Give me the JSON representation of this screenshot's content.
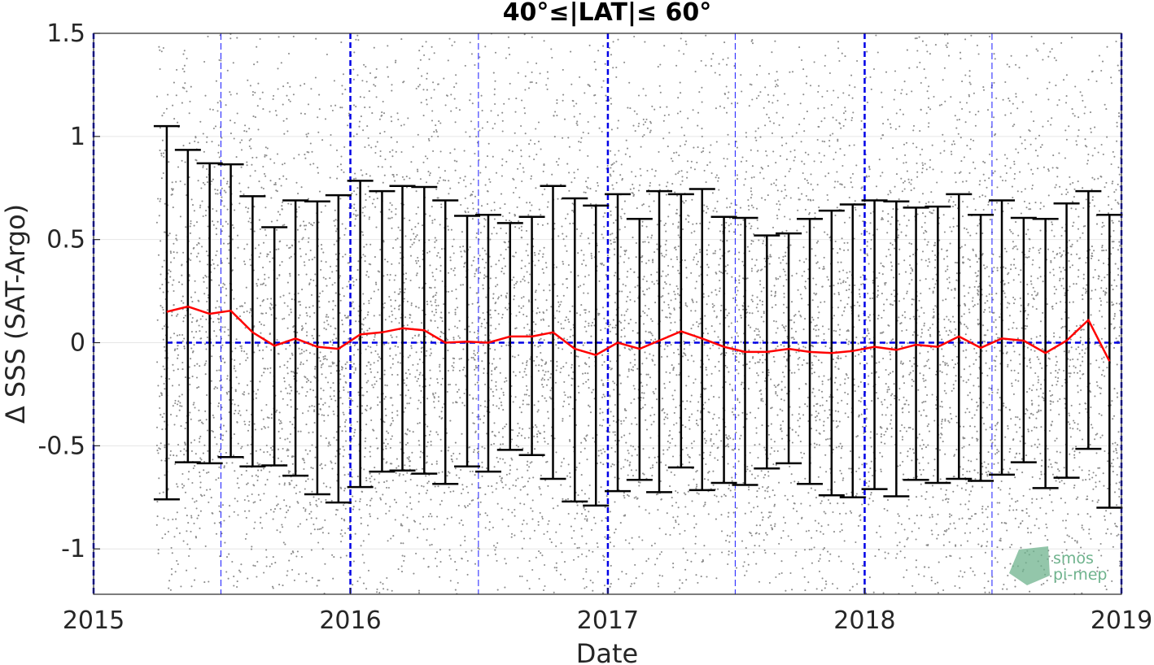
{
  "chart_data": {
    "type": "scatter",
    "title": "40°≤|LAT|≤ 60°",
    "xlabel": "Date",
    "ylabel": "Δ SSS (SAT-Argo)",
    "xlim": [
      "2015-01-01",
      "2019-01-01"
    ],
    "ylim": [
      -1.22,
      1.5
    ],
    "x_ticks": [
      "2015",
      "2016",
      "2017",
      "2018",
      "2019"
    ],
    "y_ticks": [
      "1.5",
      "1",
      "0.5",
      "0",
      "-0.5",
      "-1"
    ],
    "grid": true,
    "zero_line": 0,
    "year_lines": [
      "2015-01-01",
      "2016-01-01",
      "2017-01-01",
      "2018-01-01",
      "2019-01-01"
    ],
    "half_year_lines": [
      "2015-07-01",
      "2016-07-01",
      "2017-07-01",
      "2018-07-01"
    ],
    "scatter_start": "2015-04-01",
    "scatter_range": [
      -1.22,
      1.5
    ],
    "series": [
      {
        "kind": "monthly_mean",
        "color": "#ff0000",
        "x": [
          "2015-04-15",
          "2015-05-15",
          "2015-06-15",
          "2015-07-15",
          "2015-08-15",
          "2015-09-15",
          "2015-10-15",
          "2015-11-15",
          "2015-12-15",
          "2016-01-15",
          "2016-02-15",
          "2016-03-15",
          "2016-04-15",
          "2016-05-15",
          "2016-06-15",
          "2016-07-15",
          "2016-08-15",
          "2016-09-15",
          "2016-10-15",
          "2016-11-15",
          "2016-12-15",
          "2017-01-15",
          "2017-02-15",
          "2017-03-15",
          "2017-04-15",
          "2017-05-15",
          "2017-06-15",
          "2017-07-15",
          "2017-08-15",
          "2017-09-15",
          "2017-10-15",
          "2017-11-15",
          "2017-12-15",
          "2018-01-15",
          "2018-02-15",
          "2018-03-15",
          "2018-04-15",
          "2018-05-15",
          "2018-06-15",
          "2018-07-15",
          "2018-08-15",
          "2018-09-15",
          "2018-10-15",
          "2018-11-15",
          "2018-12-15"
        ],
        "mean": [
          0.15,
          0.175,
          0.14,
          0.155,
          0.05,
          -0.015,
          0.02,
          -0.02,
          -0.03,
          0.04,
          0.05,
          0.07,
          0.06,
          0.0,
          0.005,
          0.0,
          0.03,
          0.03,
          0.05,
          -0.03,
          -0.06,
          0.0,
          -0.03,
          0.01,
          0.055,
          0.02,
          -0.02,
          -0.045,
          -0.045,
          -0.03,
          -0.045,
          -0.05,
          -0.04,
          -0.02,
          -0.035,
          -0.01,
          -0.02,
          0.03,
          -0.025,
          0.02,
          0.01,
          -0.05,
          0.01,
          0.11,
          -0.09
        ],
        "upper": [
          1.05,
          0.935,
          0.87,
          0.865,
          0.71,
          0.56,
          0.69,
          0.685,
          0.715,
          0.785,
          0.735,
          0.76,
          0.755,
          0.69,
          0.615,
          0.62,
          0.58,
          0.61,
          0.76,
          0.7,
          0.665,
          0.72,
          0.6,
          0.735,
          0.72,
          0.745,
          0.61,
          0.605,
          0.52,
          0.53,
          0.6,
          0.64,
          0.67,
          0.69,
          0.685,
          0.655,
          0.66,
          0.72,
          0.62,
          0.69,
          0.605,
          0.6,
          0.675,
          0.735,
          0.62
        ],
        "lower": [
          -0.76,
          -0.58,
          -0.585,
          -0.555,
          -0.6,
          -0.595,
          -0.645,
          -0.735,
          -0.775,
          -0.7,
          -0.625,
          -0.62,
          -0.635,
          -0.685,
          -0.6,
          -0.625,
          -0.52,
          -0.545,
          -0.66,
          -0.77,
          -0.79,
          -0.72,
          -0.665,
          -0.725,
          -0.605,
          -0.715,
          -0.68,
          -0.69,
          -0.61,
          -0.585,
          -0.685,
          -0.74,
          -0.75,
          -0.71,
          -0.745,
          -0.665,
          -0.68,
          -0.66,
          -0.67,
          -0.64,
          -0.58,
          -0.705,
          -0.655,
          -0.515,
          -0.8
        ]
      }
    ]
  },
  "logo": {
    "line1": "smos",
    "line2": "pi-mep"
  }
}
